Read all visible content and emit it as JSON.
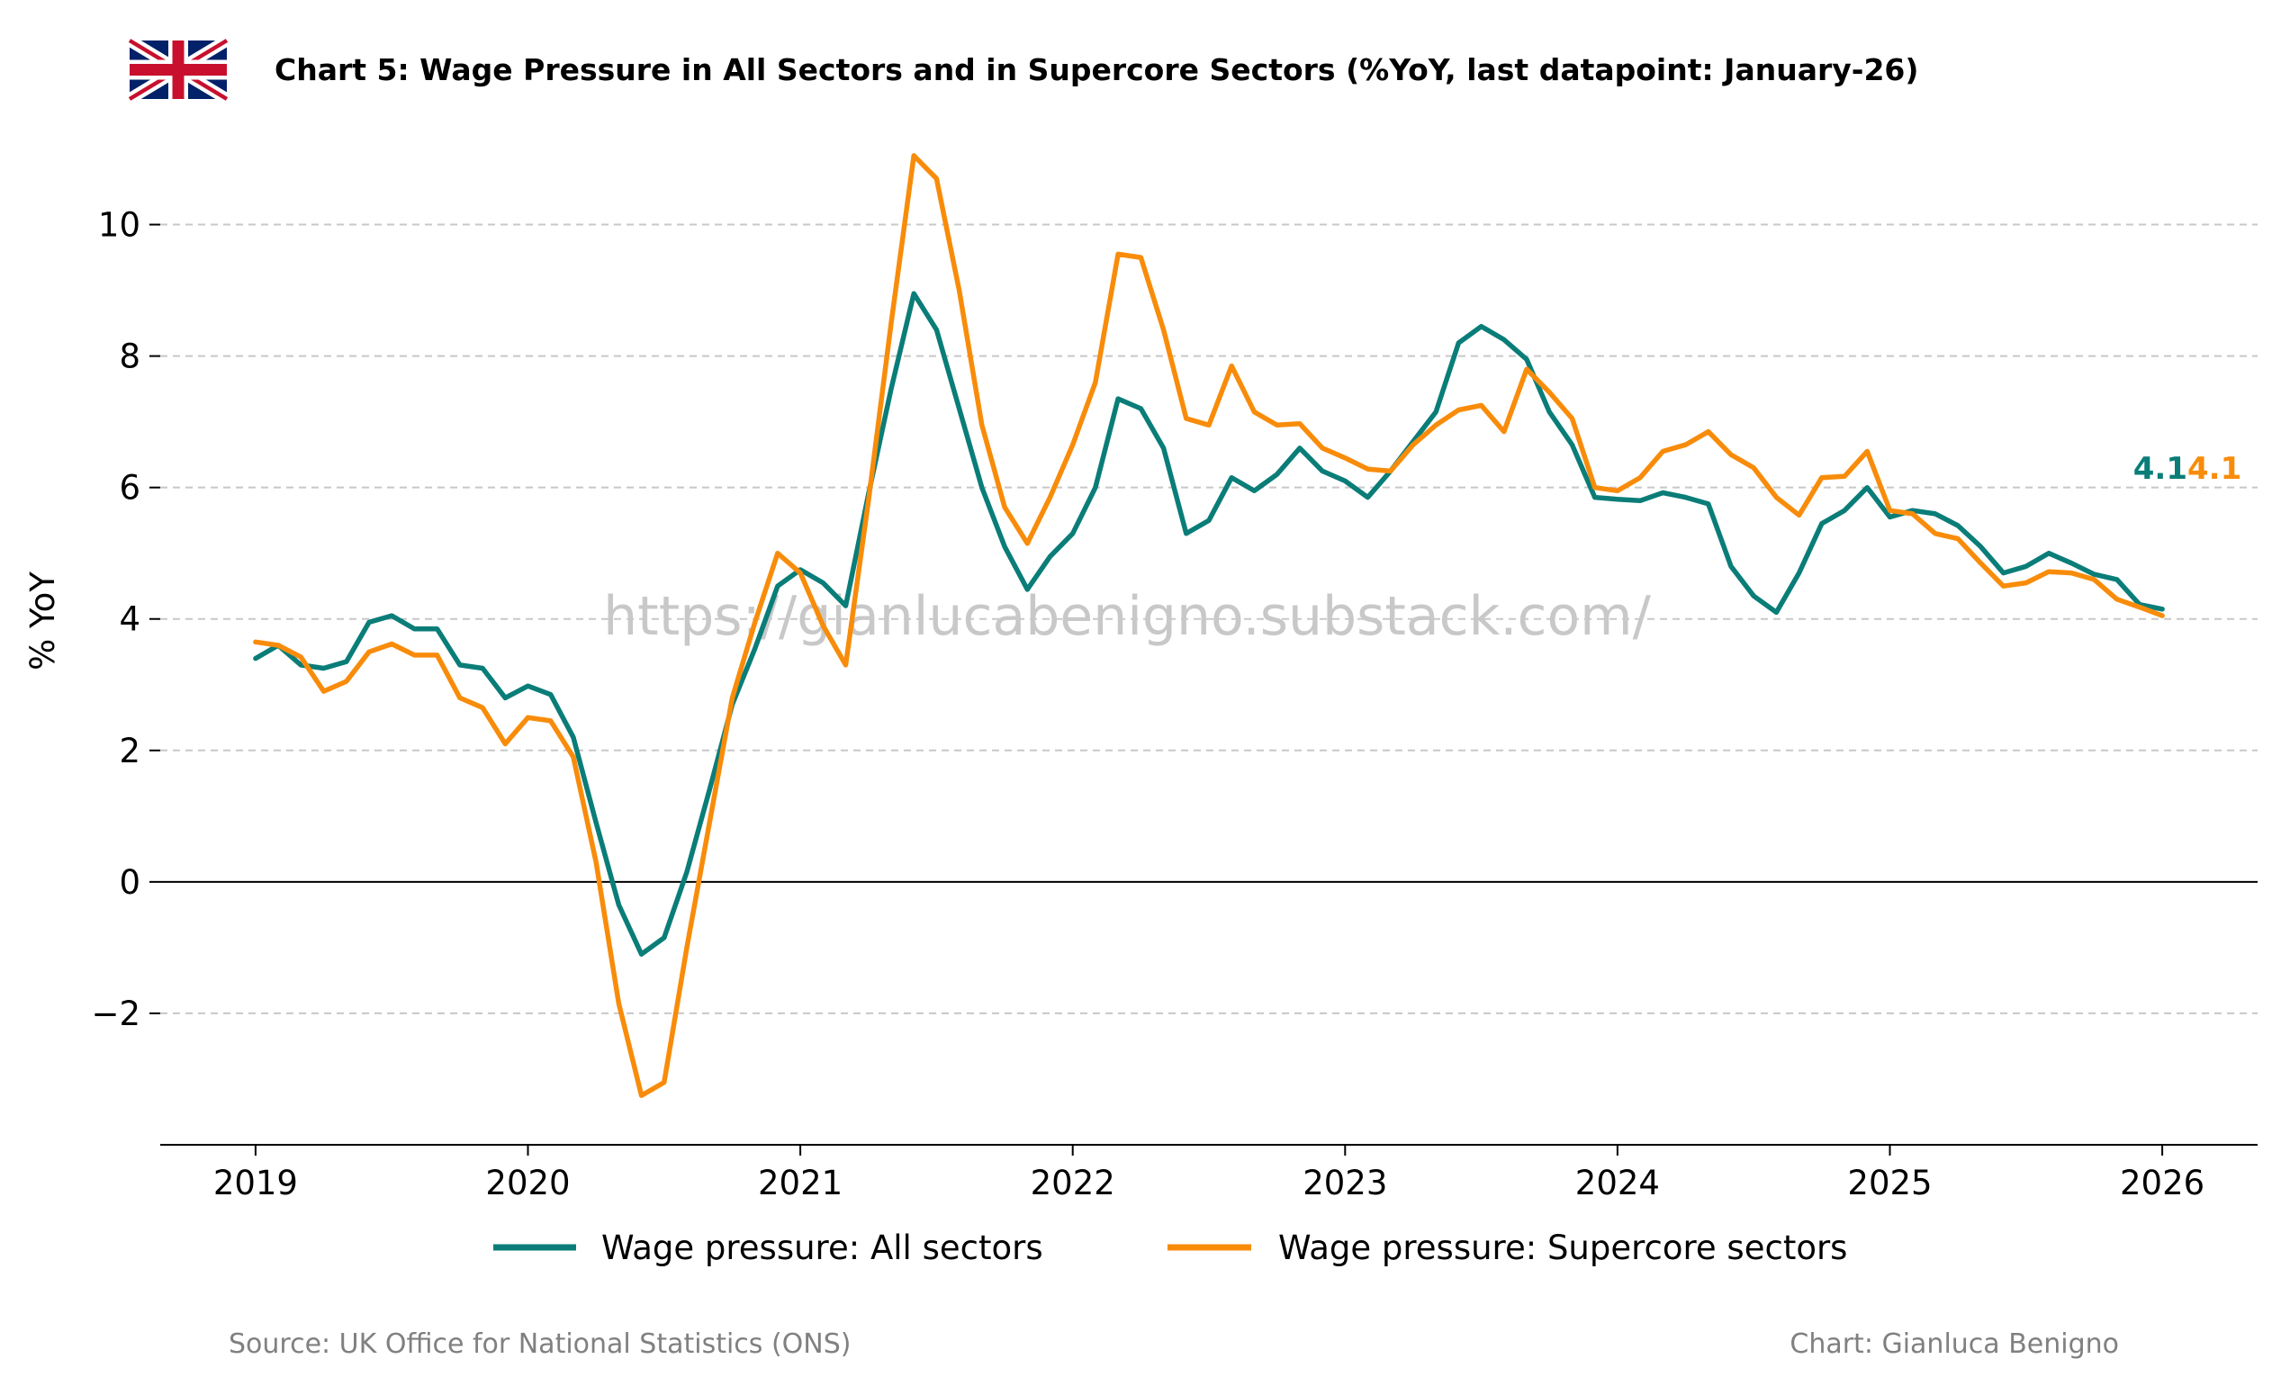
{
  "title": "Chart 5: Wage Pressure in All Sectors and in Supercore Sectors (%YoY, last datapoint: January-26)",
  "flag_icon": "uk-flag-icon",
  "watermark": "https://gianlucabenigno.substack.com/",
  "source": "Source: UK Office for National Statistics (ONS)",
  "credit": "Chart: Gianluca Benigno",
  "colors": {
    "all": "#0a7d78",
    "supercore": "#f88c0a",
    "grid": "#c8c8c8",
    "zero": "#000000"
  },
  "chart_data": {
    "type": "line",
    "title": "Chart 5: Wage Pressure in All Sectors and in Supercore Sectors (%YoY, last datapoint: January-26)",
    "xlabel": "",
    "ylabel": "% YoY",
    "x_start": "2019-01",
    "x_end": "2026-01",
    "xlim": [
      2018.65,
      2026.35
    ],
    "ylim": [
      -4.0,
      11.5
    ],
    "x_ticks": [
      2019,
      2020,
      2021,
      2022,
      2023,
      2024,
      2025,
      2026
    ],
    "x_tick_labels": [
      "2019",
      "2020",
      "2021",
      "2022",
      "2023",
      "2024",
      "2025",
      "2026"
    ],
    "y_ticks": [
      -2,
      0,
      2,
      4,
      6,
      8,
      10
    ],
    "y_tick_labels": [
      "−2",
      "0",
      "2",
      "4",
      "6",
      "8",
      "10"
    ],
    "grid": "horizontal dashed",
    "legend_position": "bottom-center",
    "series": [
      {
        "name": "Wage pressure: All sectors",
        "end_label": "4.1",
        "values": [
          3.4,
          3.6,
          3.3,
          3.25,
          3.35,
          3.95,
          4.05,
          3.85,
          3.85,
          3.3,
          3.25,
          2.8,
          2.98,
          2.85,
          2.2,
          0.9,
          -0.35,
          -1.1,
          -0.85,
          0.15,
          1.4,
          2.7,
          3.55,
          4.5,
          4.75,
          4.55,
          4.2,
          5.9,
          7.5,
          8.95,
          8.4,
          7.2,
          6.0,
          5.1,
          4.45,
          4.95,
          5.3,
          6.0,
          7.35,
          7.2,
          6.6,
          5.3,
          5.5,
          6.15,
          5.95,
          6.2,
          6.6,
          6.25,
          6.1,
          5.85,
          6.25,
          6.7,
          7.15,
          8.2,
          8.45,
          8.25,
          7.95,
          7.15,
          6.65,
          5.85,
          5.82,
          5.8,
          5.92,
          5.85,
          5.75,
          4.8,
          4.35,
          4.1,
          4.7,
          5.45,
          5.65,
          6.0,
          5.55,
          5.65,
          5.6,
          5.42,
          5.1,
          4.7,
          4.8,
          5.0,
          4.85,
          4.68,
          4.6,
          4.22,
          4.15
        ],
        "color": "#0a7d78"
      },
      {
        "name": "Wage pressure: Supercore sectors",
        "end_label": "4.1",
        "values": [
          3.65,
          3.6,
          3.42,
          2.9,
          3.05,
          3.5,
          3.62,
          3.45,
          3.45,
          2.8,
          2.65,
          2.1,
          2.5,
          2.45,
          1.9,
          0.3,
          -1.85,
          -3.25,
          -3.05,
          -1.0,
          0.9,
          2.8,
          3.95,
          5.0,
          4.7,
          3.9,
          3.3,
          5.8,
          8.5,
          11.05,
          10.7,
          9.0,
          6.95,
          5.7,
          5.15,
          5.85,
          6.65,
          7.6,
          9.55,
          9.5,
          8.4,
          7.05,
          6.95,
          7.85,
          7.15,
          6.95,
          6.97,
          6.6,
          6.45,
          6.28,
          6.25,
          6.65,
          6.95,
          7.18,
          7.25,
          6.85,
          7.8,
          7.45,
          7.05,
          6.0,
          5.95,
          6.15,
          6.55,
          6.65,
          6.85,
          6.5,
          6.3,
          5.85,
          5.58,
          6.15,
          6.17,
          6.55,
          5.65,
          5.6,
          5.3,
          5.22,
          4.85,
          4.5,
          4.55,
          4.72,
          4.7,
          4.6,
          4.3,
          4.18,
          4.05
        ],
        "color": "#f88c0a"
      }
    ]
  }
}
